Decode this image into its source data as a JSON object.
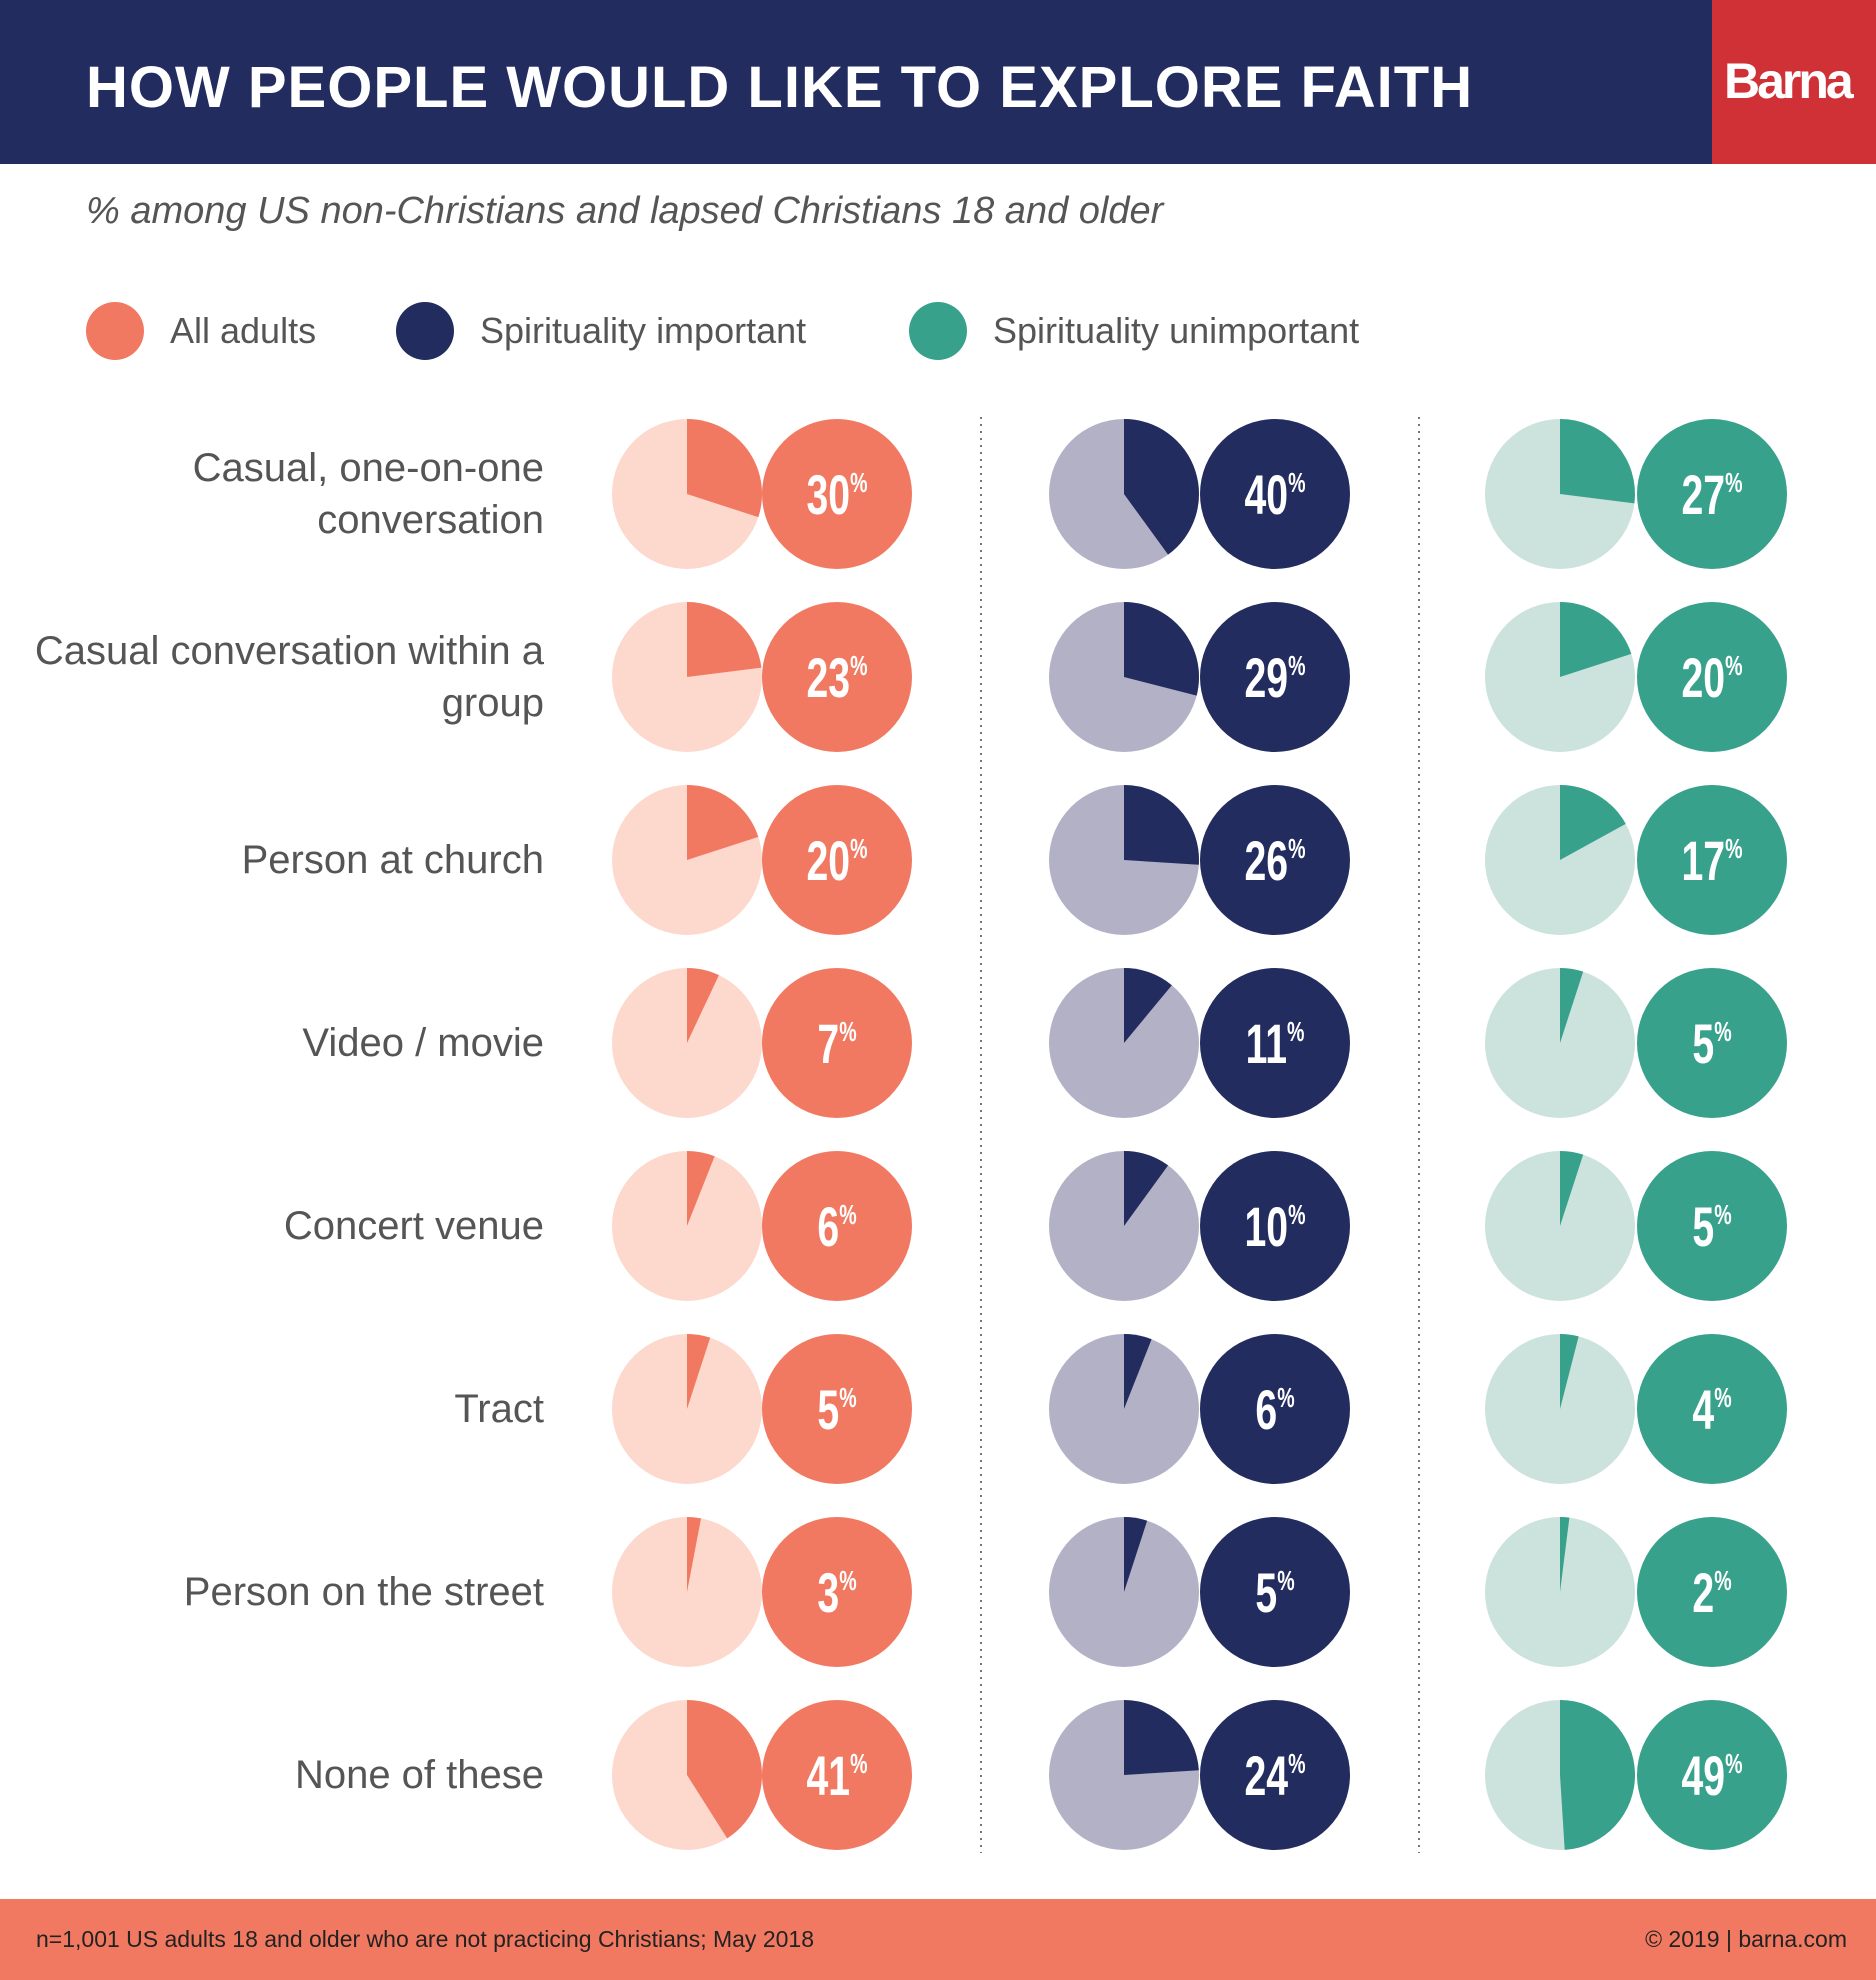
{
  "header": {
    "title": "HOW PEOPLE WOULD LIKE TO EXPLORE FAITH",
    "logo": "Barna"
  },
  "subtitle": "% among US non-Christians and lapsed Christians 18 and older",
  "footer": {
    "note": "n=1,001 US adults 18 and older who are not practicing Christians; May 2018",
    "copyright": "© 2019 | barna.com"
  },
  "chart_data": {
    "type": "pie",
    "title": "HOW PEOPLE WOULD LIKE TO EXPLORE FAITH",
    "subtitle": "% among US non-Christians and lapsed Christians 18 and older",
    "legend_placement": "top-left",
    "unit": "%",
    "categories": [
      "Casual, one-on-one conversation",
      "Casual conversation within a group",
      "Person at church",
      "Video / movie",
      "Concert venue",
      "Tract",
      "Person on the street",
      "None of these"
    ],
    "series": [
      {
        "name": "All adults",
        "color": "#f27961",
        "light": "#fcd9cc",
        "values": [
          30,
          23,
          20,
          7,
          6,
          5,
          3,
          41
        ]
      },
      {
        "name": "Spirituality important",
        "color": "#222c5f",
        "light": "#b3b1c6",
        "values": [
          40,
          29,
          26,
          11,
          10,
          6,
          5,
          24
        ]
      },
      {
        "name": "Spirituality unimportant",
        "color": "#37a18c",
        "light": "#cce2dc",
        "values": [
          27,
          20,
          17,
          5,
          5,
          4,
          2,
          49
        ]
      }
    ]
  }
}
